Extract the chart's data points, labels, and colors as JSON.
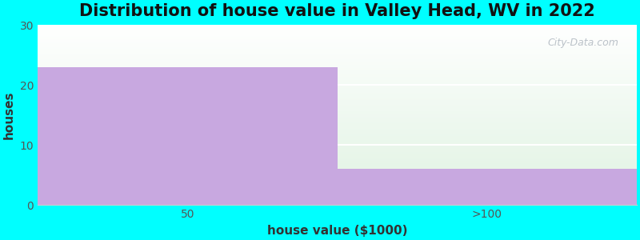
{
  "title": "Distribution of house value in Valley Head, WV in 2022",
  "categories": [
    "50",
    ">100"
  ],
  "values": [
    23,
    6
  ],
  "bar_color": "#c8a8e0",
  "xlabel": "house value ($1000)",
  "ylabel": "houses",
  "ylim": [
    0,
    30
  ],
  "yticks": [
    0,
    10,
    20,
    30
  ],
  "background_color": "#00ffff",
  "plot_bg_color_topleft": "#e8f5ec",
  "plot_bg_color_white": "#ffffff",
  "title_fontsize": 15,
  "axis_label_fontsize": 11,
  "tick_fontsize": 10,
  "watermark_text": "City-Data.com",
  "grid_color": "#ffffff",
  "grid_linewidth": 1.5
}
